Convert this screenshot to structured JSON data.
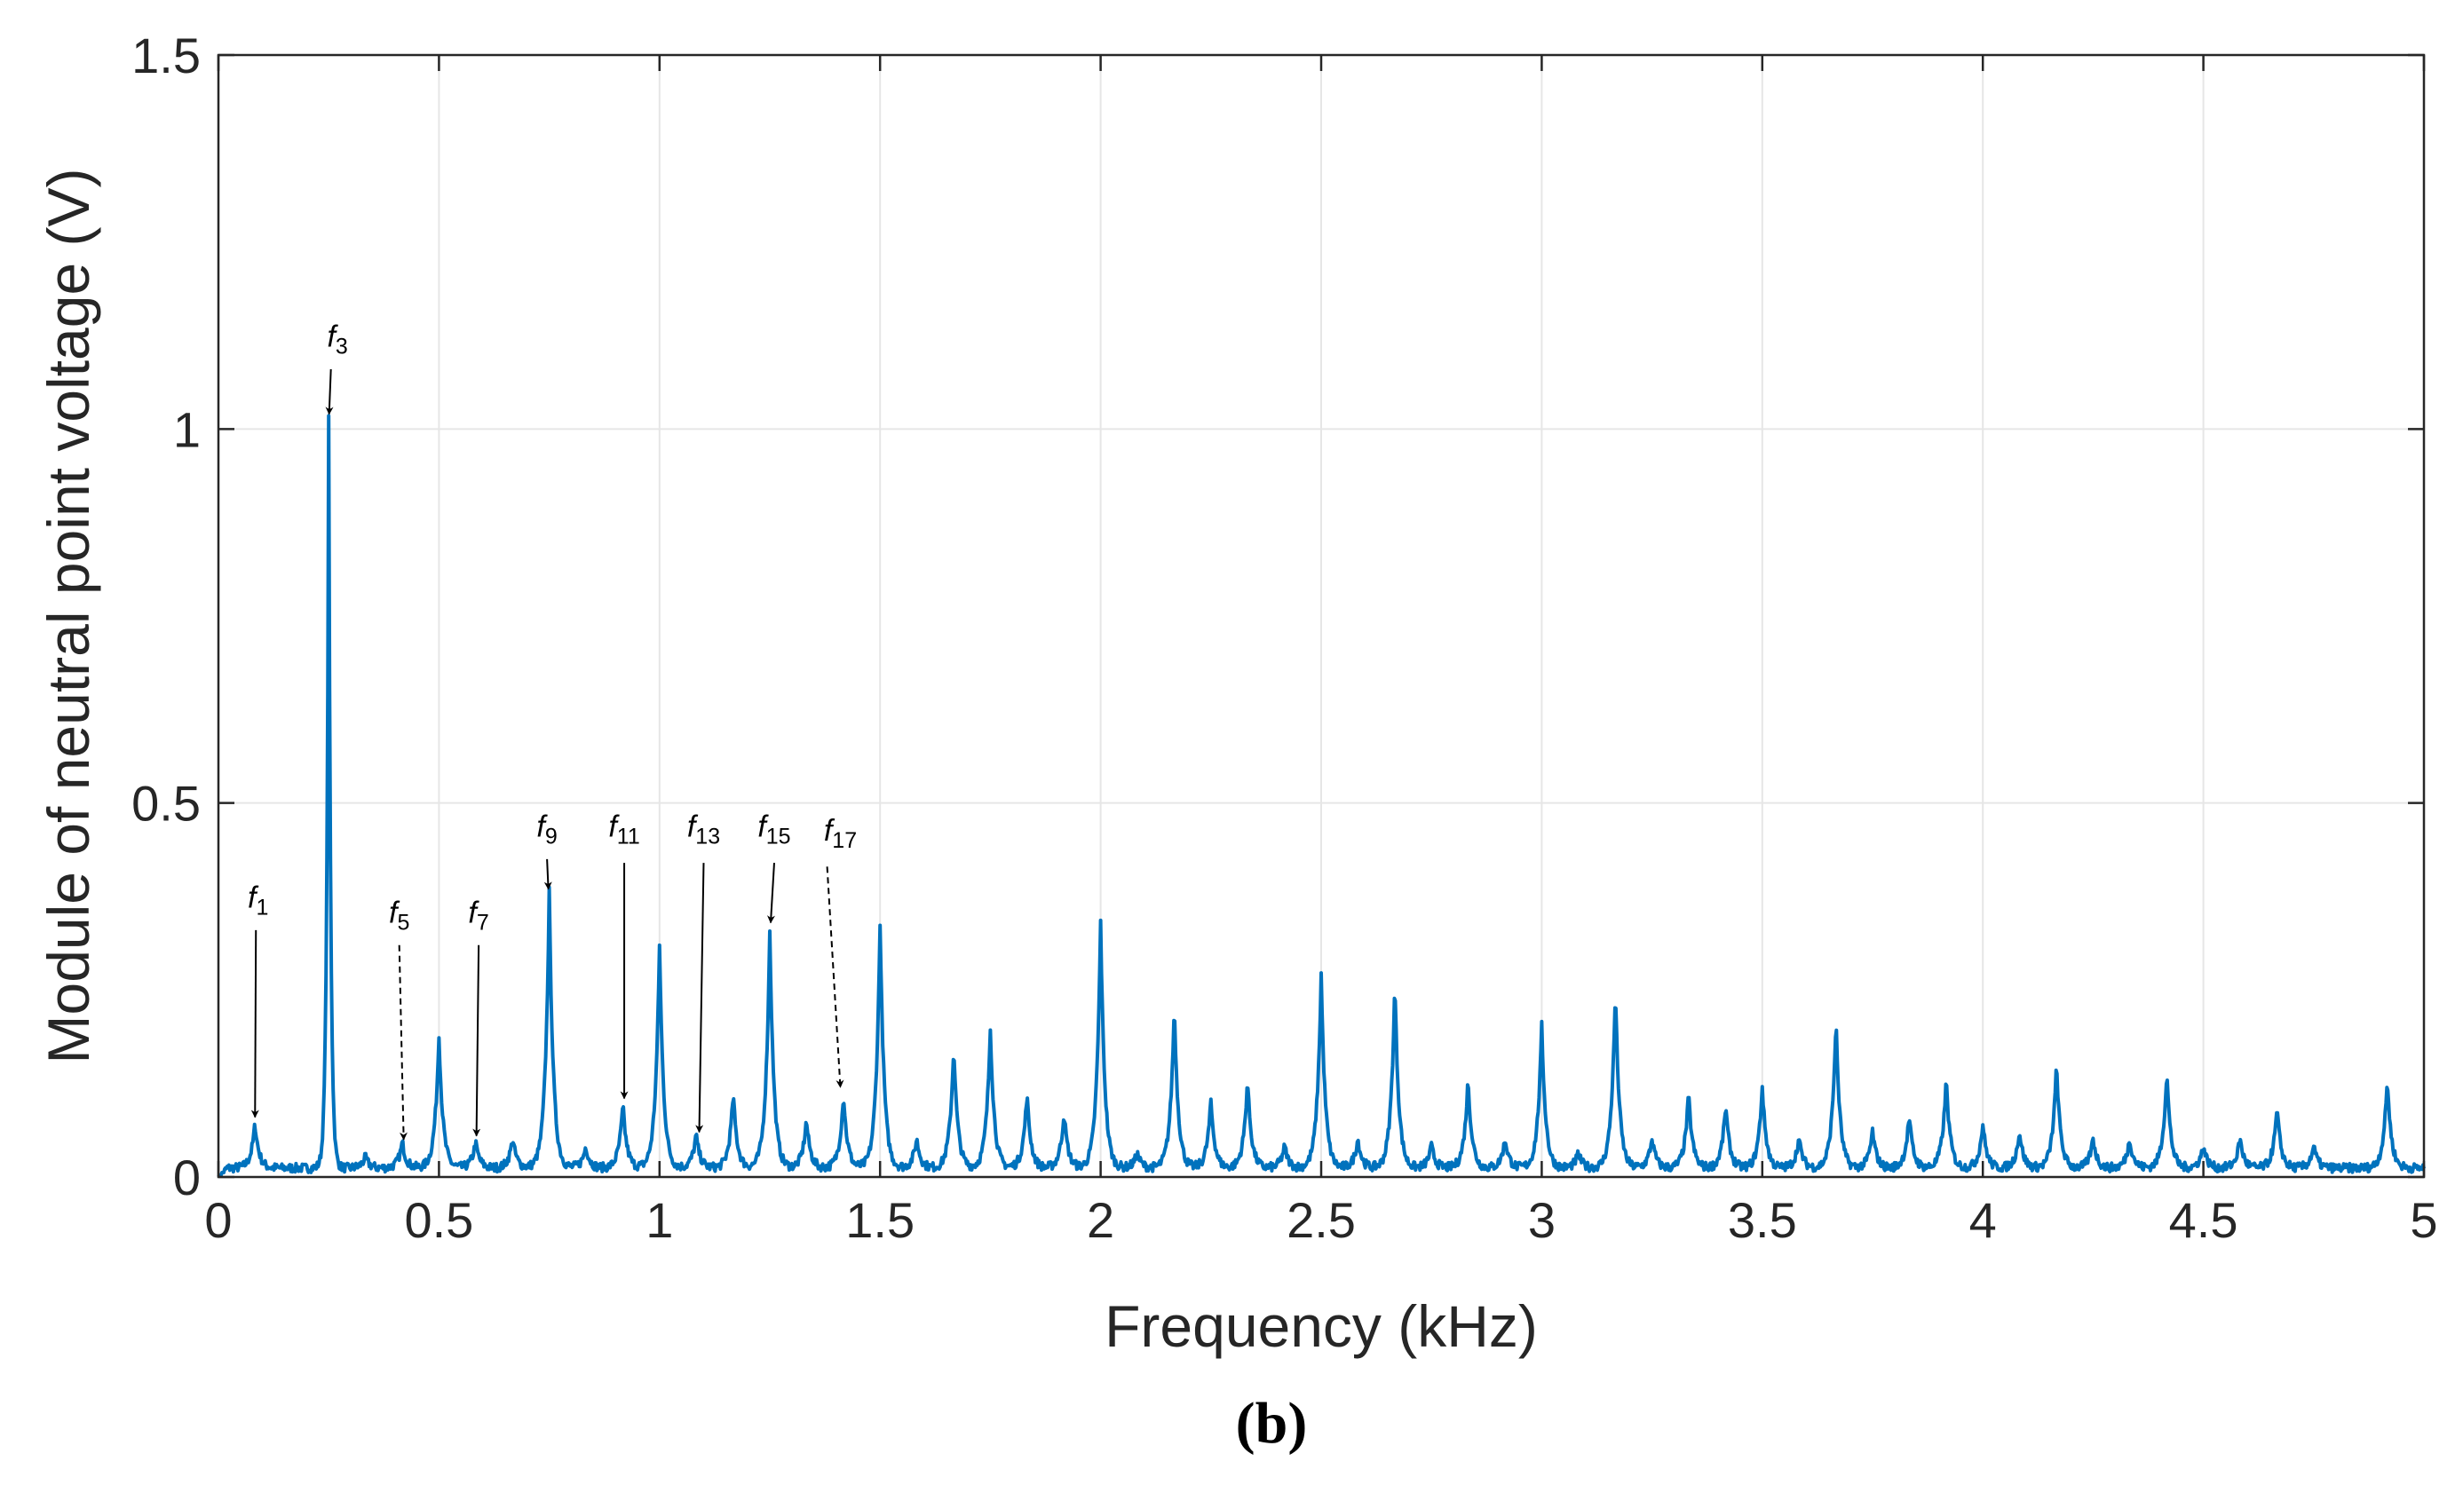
{
  "chart_data": {
    "type": "line",
    "xlabel": "Frequency  (kHz)",
    "ylabel": "Module of neutral point voltage (V)",
    "panel_label": "(b)",
    "xlim": [
      0,
      5
    ],
    "ylim": [
      0,
      1.5
    ],
    "grid": true,
    "xticks": [
      0,
      0.5,
      1,
      1.5,
      2,
      2.5,
      3,
      3.5,
      4,
      4.5,
      5
    ],
    "xtick_labels": [
      "0",
      "0.5",
      "1",
      "1.5",
      "2",
      "2.5",
      "3",
      "3.5",
      "4",
      "4.5",
      "5"
    ],
    "yticks": [
      0,
      0.5,
      1,
      1.5
    ],
    "ytick_labels": [
      "0",
      "0.5",
      "1",
      "1.5"
    ],
    "series_color": "#0072BD",
    "baseline": 0.012,
    "peaks": [
      [
        0.083,
        0.06
      ],
      [
        0.25,
        1.0
      ],
      [
        0.333,
        0.015
      ],
      [
        0.417,
        0.035
      ],
      [
        0.5,
        0.18
      ],
      [
        0.583,
        0.035
      ],
      [
        0.667,
        0.04
      ],
      [
        0.75,
        0.37
      ],
      [
        0.833,
        0.03
      ],
      [
        0.917,
        0.085
      ],
      [
        1.0,
        0.3
      ],
      [
        1.083,
        0.045
      ],
      [
        1.167,
        0.1
      ],
      [
        1.25,
        0.32
      ],
      [
        1.333,
        0.065
      ],
      [
        1.417,
        0.1
      ],
      [
        1.5,
        0.33
      ],
      [
        1.583,
        0.04
      ],
      [
        1.667,
        0.165
      ],
      [
        1.75,
        0.19
      ],
      [
        1.833,
        0.1
      ],
      [
        1.917,
        0.075
      ],
      [
        2.0,
        0.33
      ],
      [
        2.083,
        0.02
      ],
      [
        2.167,
        0.22
      ],
      [
        2.25,
        0.09
      ],
      [
        2.333,
        0.12
      ],
      [
        2.417,
        0.03
      ],
      [
        2.5,
        0.26
      ],
      [
        2.583,
        0.04
      ],
      [
        2.667,
        0.25
      ],
      [
        2.75,
        0.03
      ],
      [
        2.833,
        0.12
      ],
      [
        2.917,
        0.04
      ],
      [
        3.0,
        0.19
      ],
      [
        3.083,
        0.02
      ],
      [
        3.167,
        0.24
      ],
      [
        3.25,
        0.04
      ],
      [
        3.333,
        0.1
      ],
      [
        3.417,
        0.085
      ],
      [
        3.5,
        0.11
      ],
      [
        3.583,
        0.04
      ],
      [
        3.667,
        0.2
      ],
      [
        3.75,
        0.05
      ],
      [
        3.833,
        0.07
      ],
      [
        3.917,
        0.12
      ],
      [
        4.0,
        0.06
      ],
      [
        4.083,
        0.05
      ],
      [
        4.167,
        0.14
      ],
      [
        4.25,
        0.04
      ],
      [
        4.333,
        0.04
      ],
      [
        4.417,
        0.13
      ],
      [
        4.5,
        0.03
      ],
      [
        4.583,
        0.04
      ],
      [
        4.667,
        0.08
      ],
      [
        4.75,
        0.03
      ],
      [
        4.917,
        0.12
      ]
    ],
    "annotations": [
      {
        "base": "f",
        "sub": "1",
        "text_xy": [
          0.09,
          0.36
        ],
        "arrow_from": [
          0.085,
          0.33
        ],
        "arrow_to": [
          0.083,
          0.08
        ],
        "dashed": false
      },
      {
        "base": "f",
        "sub": "3",
        "text_xy": [
          0.27,
          1.11
        ],
        "arrow_from": [
          0.255,
          1.08
        ],
        "arrow_to": [
          0.251,
          1.02
        ],
        "dashed": false
      },
      {
        "base": "f",
        "sub": "5",
        "text_xy": [
          0.41,
          0.34
        ],
        "arrow_from": [
          0.41,
          0.31
        ],
        "arrow_to": [
          0.42,
          0.05
        ],
        "dashed": true
      },
      {
        "base": "f",
        "sub": "7",
        "text_xy": [
          0.59,
          0.34
        ],
        "arrow_from": [
          0.59,
          0.31
        ],
        "arrow_to": [
          0.585,
          0.055
        ],
        "dashed": false
      },
      {
        "base": "f",
        "sub": "9",
        "text_xy": [
          0.745,
          0.455
        ],
        "arrow_from": [
          0.745,
          0.425
        ],
        "arrow_to": [
          0.748,
          0.385
        ],
        "dashed": false
      },
      {
        "base": "f",
        "sub": "11",
        "text_xy": [
          0.92,
          0.455
        ],
        "arrow_from": [
          0.92,
          0.42
        ],
        "arrow_to": [
          0.92,
          0.105
        ],
        "dashed": false
      },
      {
        "base": "f",
        "sub": "13",
        "text_xy": [
          1.1,
          0.455
        ],
        "arrow_from": [
          1.1,
          0.42
        ],
        "arrow_to": [
          1.09,
          0.06
        ],
        "dashed": false
      },
      {
        "base": "f",
        "sub": "15",
        "text_xy": [
          1.26,
          0.455
        ],
        "arrow_from": [
          1.26,
          0.42
        ],
        "arrow_to": [
          1.252,
          0.34
        ],
        "dashed": false
      },
      {
        "base": "f",
        "sub": "17",
        "text_xy": [
          1.41,
          0.45
        ],
        "arrow_from": [
          1.38,
          0.415
        ],
        "arrow_to": [
          1.41,
          0.12
        ],
        "dashed": true
      }
    ]
  }
}
